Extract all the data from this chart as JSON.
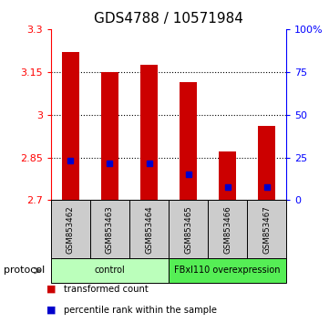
{
  "title": "GDS4788 / 10571984",
  "samples": [
    "GSM853462",
    "GSM853463",
    "GSM853464",
    "GSM853465",
    "GSM853466",
    "GSM853467"
  ],
  "bar_tops": [
    3.22,
    3.15,
    3.175,
    3.115,
    2.87,
    2.96
  ],
  "bar_base": 2.7,
  "blue_markers": [
    2.84,
    2.828,
    2.828,
    2.79,
    2.745,
    2.745
  ],
  "ylim_left": [
    2.7,
    3.3
  ],
  "ylim_right": [
    0,
    100
  ],
  "left_ticks": [
    2.7,
    2.85,
    3.0,
    3.15,
    3.3
  ],
  "right_ticks": [
    0,
    25,
    50,
    75,
    100
  ],
  "right_tick_labels": [
    "0",
    "25",
    "50",
    "75",
    "100%"
  ],
  "grid_values": [
    2.85,
    3.0,
    3.15
  ],
  "bar_color": "#cc0000",
  "blue_color": "#0000cc",
  "title_fontsize": 11,
  "groups": [
    {
      "label": "control",
      "start": 0,
      "end": 3,
      "color": "#bbffbb"
    },
    {
      "label": "FBxl110 overexpression",
      "start": 3,
      "end": 6,
      "color": "#55ee55"
    }
  ],
  "protocol_label": "protocol",
  "legend": [
    {
      "color": "#cc0000",
      "label": "transformed count"
    },
    {
      "color": "#0000cc",
      "label": "percentile rank within the sample"
    }
  ],
  "background_color": "#ffffff",
  "plot_bg": "#ffffff",
  "tick_bg": "#cccccc"
}
